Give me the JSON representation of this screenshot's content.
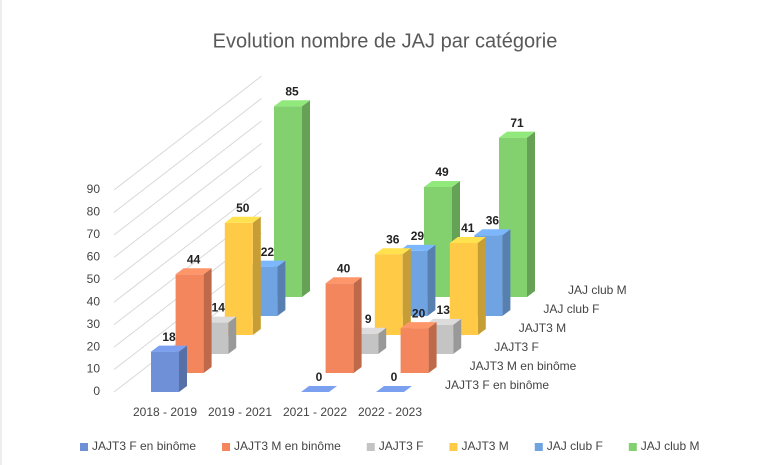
{
  "chart_data": {
    "type": "bar3d",
    "title": "Evolution nombre de JAJ  par catégorie",
    "categories": [
      "2018 - 2019",
      "2019 - 2021",
      "2021 - 2022",
      "2022 - 2023"
    ],
    "series": [
      {
        "name": "JAJT3 F en binôme",
        "color": "#6f8fd6",
        "values": [
          18,
          null,
          0,
          0
        ]
      },
      {
        "name": "JAJT3 M en binôme",
        "color": "#f4865e",
        "values": [
          44,
          null,
          40,
          20
        ]
      },
      {
        "name": "JAJT3 F",
        "color": "#c4c4c4",
        "values": [
          14,
          null,
          9,
          13
        ]
      },
      {
        "name": "JAJT3 M",
        "color": "#ffca45",
        "values": [
          50,
          null,
          36,
          41
        ]
      },
      {
        "name": "JAJ club F",
        "color": "#6fa3e2",
        "values": [
          22,
          null,
          29,
          36
        ]
      },
      {
        "name": "JAJ club M",
        "color": "#82d06e",
        "values": [
          85,
          null,
          49,
          71
        ]
      }
    ],
    "ylim": [
      0,
      90
    ],
    "yticks": [
      0,
      10,
      20,
      30,
      40,
      50,
      60,
      70,
      80,
      90
    ],
    "grid": true,
    "legend": "bottom"
  }
}
